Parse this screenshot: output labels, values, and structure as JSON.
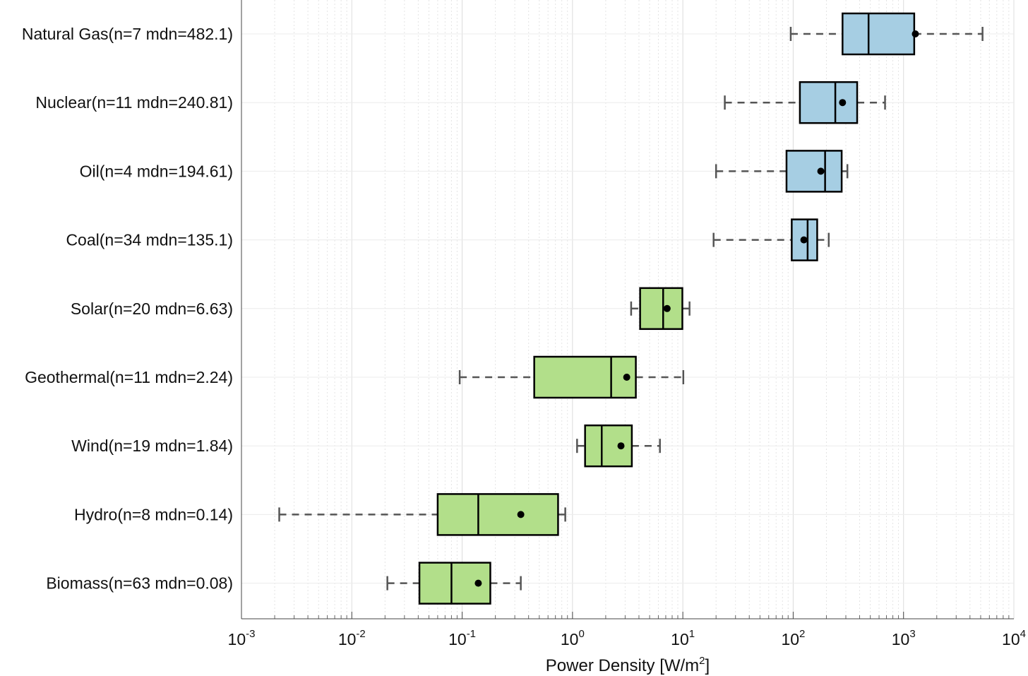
{
  "chart_data": {
    "type": "box",
    "orientation": "horizontal",
    "xscale": "log",
    "xlim": [
      0.001,
      10000
    ],
    "x_ticks": [
      {
        "value": 0.001,
        "base": "10",
        "exp": "-3"
      },
      {
        "value": 0.01,
        "base": "10",
        "exp": "-2"
      },
      {
        "value": 0.1,
        "base": "10",
        "exp": "-1"
      },
      {
        "value": 1,
        "base": "10",
        "exp": "0"
      },
      {
        "value": 10,
        "base": "10",
        "exp": "1"
      },
      {
        "value": 100,
        "base": "10",
        "exp": "2"
      },
      {
        "value": 1000,
        "base": "10",
        "exp": "3"
      },
      {
        "value": 10000,
        "base": "10",
        "exp": "4"
      }
    ],
    "xlabel": {
      "text": "Power Density [W/m",
      "sup": "2",
      "after": "]"
    },
    "grid": true,
    "colors": {
      "fossil": "#a6cee3",
      "renewable": "#b2df8a",
      "mean_marker": "#000000",
      "whisker": "#555555"
    },
    "series": [
      {
        "label": "Natural Gas(n=7 mdn=482.1)",
        "group": "fossil",
        "whisker_low": 95,
        "q1": 280,
        "median": 482.1,
        "q3": 1250,
        "whisker_high": 5200,
        "mean": 1280
      },
      {
        "label": "Nuclear(n=11 mdn=240.81)",
        "group": "fossil",
        "whisker_low": 24,
        "q1": 115,
        "median": 240.81,
        "q3": 380,
        "whisker_high": 680,
        "mean": 280
      },
      {
        "label": "Oil(n=4 mdn=194.61)",
        "group": "fossil",
        "whisker_low": 20,
        "q1": 87,
        "median": 194.61,
        "q3": 275,
        "whisker_high": 310,
        "mean": 178
      },
      {
        "label": "Coal(n=34 mdn=135.1)",
        "group": "fossil",
        "whisker_low": 19,
        "q1": 97,
        "median": 135.1,
        "q3": 165,
        "whisker_high": 210,
        "mean": 125
      },
      {
        "label": "Solar(n=20 mdn=6.63)",
        "group": "renewable",
        "whisker_low": 3.4,
        "q1": 4.1,
        "median": 6.63,
        "q3": 9.9,
        "whisker_high": 11.5,
        "mean": 7.2
      },
      {
        "label": "Geothermal(n=11 mdn=2.24)",
        "group": "renewable",
        "whisker_low": 0.095,
        "q1": 0.45,
        "median": 2.24,
        "q3": 3.75,
        "whisker_high": 10.1,
        "mean": 3.1
      },
      {
        "label": "Wind(n=19 mdn=1.84)",
        "group": "renewable",
        "whisker_low": 1.1,
        "q1": 1.3,
        "median": 1.84,
        "q3": 3.45,
        "whisker_high": 6.2,
        "mean": 2.75
      },
      {
        "label": "Hydro(n=8 mdn=0.14)",
        "group": "renewable",
        "whisker_low": 0.0022,
        "q1": 0.06,
        "median": 0.14,
        "q3": 0.74,
        "whisker_high": 0.86,
        "mean": 0.34
      },
      {
        "label": "Biomass(n=63 mdn=0.08)",
        "group": "renewable",
        "whisker_low": 0.021,
        "q1": 0.041,
        "median": 0.08,
        "q3": 0.18,
        "whisker_high": 0.34,
        "mean": 0.14
      }
    ]
  }
}
